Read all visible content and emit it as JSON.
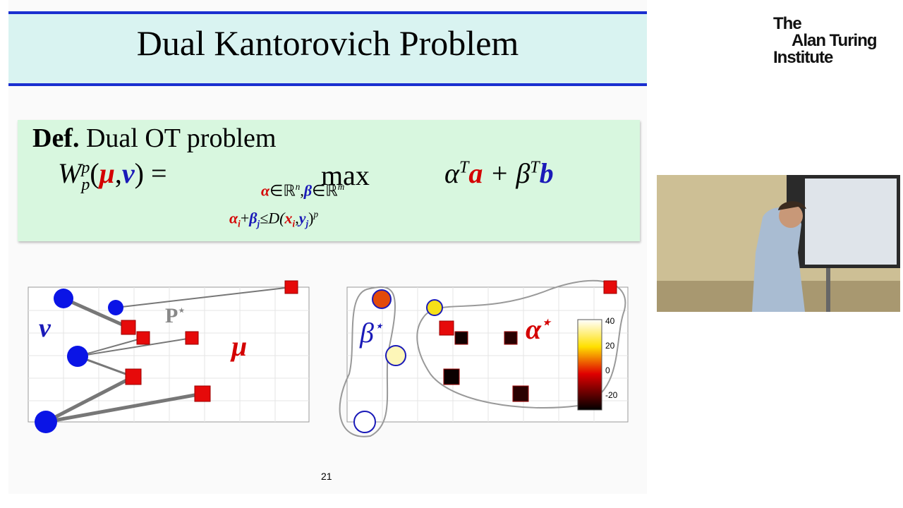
{
  "slide": {
    "title": "Dual Kantorovich Problem",
    "definition": {
      "label": "Def.",
      "heading": "Dual OT problem",
      "lhs": {
        "W": "W",
        "sup": "p",
        "sub": "p",
        "open": "(",
        "mu": "μ",
        "comma": ",",
        "nu": "ν",
        "close": ") ="
      },
      "operator": "max",
      "constraint1": {
        "alpha": "α",
        "in1": "∈ℝ",
        "n": "n",
        "comma": ",",
        "beta": "β",
        "in2": "∈ℝ",
        "m": "m"
      },
      "constraint2": {
        "alpha": "α",
        "i": "i",
        "plus": "+",
        "beta": "β",
        "j": "j",
        "le": "≤D(",
        "x": "x",
        "xi": "i",
        "comma": ",",
        "y": "y",
        "yj": "j",
        "close": ")",
        "p": "p"
      },
      "objective": {
        "alpha": "α",
        "t1": "T",
        "a": "a",
        "plus": "+ β",
        "t2": "T",
        "b": "b"
      }
    },
    "left_plot": {
      "nu": "ν",
      "mu": "μ",
      "plan": "P",
      "plan_star": "⋆"
    },
    "right_plot": {
      "beta": "β",
      "beta_star": "⋆",
      "alpha": "α",
      "alpha_star": "⋆",
      "colorbar_ticks": [
        "40",
        "20",
        "0",
        "-20"
      ]
    },
    "page_number": "21"
  },
  "logo": {
    "line1": "The",
    "line2": "Alan Turing",
    "line3": "Institute"
  }
}
